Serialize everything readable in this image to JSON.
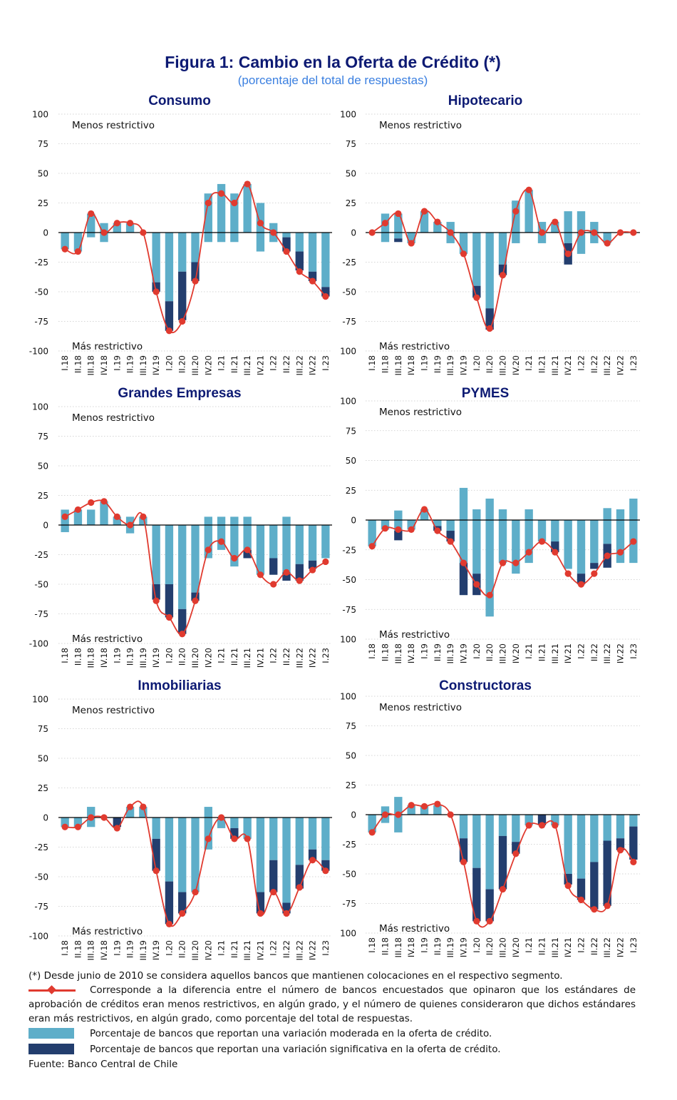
{
  "title": "Figura 1: Cambio en la Oferta de Crédito (*)",
  "subtitle": "(porcentaje del total de respuestas)",
  "colors": {
    "moderate": "#5eaec9",
    "significant": "#233e6e",
    "line": "#e03a2f",
    "title": "#0d1a73",
    "subtitle": "#3a7fe0"
  },
  "annotations": {
    "upper": "Menos restrictivo",
    "lower": "Más restrictivo"
  },
  "chart_data": [
    {
      "type": "bar",
      "title": "Consumo",
      "categories": [
        "I.18",
        "II.18",
        "III.18",
        "IV.18",
        "I.19",
        "II.19",
        "III.19",
        "IV.19",
        "I.20",
        "II.20",
        "III.20",
        "IV.20",
        "I.21",
        "II.21",
        "III.21",
        "IV.21",
        "I.22",
        "II.22",
        "III.22",
        "IV.22",
        "I.23"
      ],
      "yticks": [
        "100",
        "75",
        "50",
        "25",
        "0",
        "-25",
        "-50",
        "-75",
        "-100"
      ],
      "ylim": [
        -100,
        100
      ],
      "grid": true,
      "series": [
        {
          "name": "Variación moderada (+)",
          "kind": "bar",
          "values": [
            0,
            0,
            16,
            8,
            8,
            8,
            0,
            0,
            0,
            0,
            0,
            33,
            41,
            33,
            41,
            25,
            8,
            0,
            0,
            0,
            0
          ]
        },
        {
          "name": "Variación significativa (+)",
          "kind": "bar",
          "values": [
            0,
            0,
            0,
            0,
            0,
            0,
            0,
            0,
            0,
            0,
            0,
            0,
            0,
            0,
            0,
            0,
            0,
            0,
            0,
            0,
            0
          ]
        },
        {
          "name": "Variación moderada (-)",
          "kind": "bar",
          "values": [
            -14,
            -16,
            -4,
            -8,
            0,
            0,
            0,
            -42,
            -58,
            -33,
            -25,
            -8,
            -8,
            -8,
            0,
            -16,
            -8,
            -4,
            -16,
            -33,
            -46
          ]
        },
        {
          "name": "Variación significativa (-)",
          "kind": "bar",
          "values": [
            0,
            0,
            0,
            0,
            0,
            0,
            0,
            -8,
            -25,
            -41,
            -16,
            0,
            0,
            0,
            0,
            0,
            0,
            -12,
            -16,
            -8,
            -8
          ]
        },
        {
          "name": "Diferencia",
          "kind": "line",
          "values": [
            -14,
            -16,
            16,
            0,
            8,
            8,
            0,
            -50,
            -83,
            -75,
            -41,
            25,
            33,
            25,
            41,
            8,
            0,
            -16,
            -33,
            -41,
            -54
          ]
        }
      ]
    },
    {
      "type": "bar",
      "title": "Hipotecario",
      "categories": [
        "I.18",
        "II.18",
        "III.18",
        "IV.18",
        "I.19",
        "II.19",
        "III.19",
        "IV.19",
        "I.20",
        "II.20",
        "III.20",
        "IV.20",
        "I.21",
        "II.21",
        "III.21",
        "IV.21",
        "I.22",
        "II.22",
        "III.22",
        "IV.22",
        "I.23"
      ],
      "yticks": [
        "100",
        "75",
        "50",
        "25",
        "0",
        "-25",
        "-50",
        "-75",
        "100"
      ],
      "ylim": [
        -100,
        100
      ],
      "grid": true,
      "series": [
        {
          "name": "Variación moderada (+)",
          "kind": "bar",
          "values": [
            0,
            16,
            16,
            0,
            18,
            9,
            9,
            0,
            0,
            0,
            0,
            27,
            36,
            9,
            9,
            18,
            18,
            9,
            0,
            0,
            0
          ]
        },
        {
          "name": "Variación significativa (+)",
          "kind": "bar",
          "values": [
            0,
            0,
            0,
            0,
            0,
            0,
            0,
            0,
            0,
            0,
            0,
            0,
            0,
            0,
            0,
            0,
            0,
            0,
            0,
            0,
            0
          ]
        },
        {
          "name": "Variación moderada (-)",
          "kind": "bar",
          "values": [
            0,
            -8,
            -5,
            -9,
            0,
            0,
            -9,
            -18,
            -45,
            -64,
            -27,
            -9,
            0,
            -9,
            0,
            -9,
            -18,
            -9,
            -9,
            0,
            0
          ]
        },
        {
          "name": "Variación significativa (-)",
          "kind": "bar",
          "values": [
            0,
            0,
            -3,
            0,
            0,
            0,
            0,
            0,
            -10,
            -18,
            -9,
            0,
            0,
            0,
            0,
            -18,
            0,
            0,
            0,
            0,
            0
          ]
        },
        {
          "name": "Diferencia",
          "kind": "line",
          "values": [
            0,
            8,
            16,
            -9,
            18,
            9,
            0,
            -18,
            -55,
            -81,
            -36,
            18,
            36,
            0,
            9,
            -18,
            0,
            0,
            -9,
            0,
            0
          ]
        }
      ]
    },
    {
      "type": "bar",
      "title": "Grandes Empresas",
      "categories": [
        "I.18",
        "II.18",
        "III.18",
        "IV.18",
        "I.19",
        "II.19",
        "III.19",
        "IV.19",
        "I.20",
        "II.20",
        "III.20",
        "IV.20",
        "I.21",
        "II.21",
        "III.21",
        "IV.21",
        "I.22",
        "II.22",
        "III.22",
        "IV.22",
        "I.23"
      ],
      "yticks": [
        "100",
        "75",
        "50",
        "25",
        "0",
        "-25",
        "-50",
        "-75",
        "-100"
      ],
      "ylim": [
        -100,
        100
      ],
      "grid": true,
      "series": [
        {
          "name": "Variación moderada (+)",
          "kind": "bar",
          "values": [
            13,
            13,
            13,
            20,
            7,
            7,
            7,
            0,
            0,
            0,
            0,
            7,
            7,
            7,
            7,
            0,
            0,
            7,
            0,
            0,
            0
          ]
        },
        {
          "name": "Variación significativa (+)",
          "kind": "bar",
          "values": [
            0,
            0,
            0,
            0,
            0,
            0,
            0,
            0,
            0,
            0,
            0,
            0,
            0,
            0,
            0,
            0,
            0,
            0,
            0,
            0,
            0
          ]
        },
        {
          "name": "Variación moderada (-)",
          "kind": "bar",
          "values": [
            -6,
            0,
            0,
            0,
            0,
            -7,
            0,
            -50,
            -50,
            -71,
            -57,
            -28,
            -21,
            -35,
            -21,
            -42,
            -28,
            -40,
            -33,
            -30,
            -28
          ]
        },
        {
          "name": "Variación significativa (-)",
          "kind": "bar",
          "values": [
            0,
            0,
            0,
            0,
            0,
            0,
            0,
            -13,
            -28,
            -21,
            -7,
            0,
            0,
            0,
            -7,
            0,
            -14,
            -7,
            -14,
            -7,
            0
          ]
        },
        {
          "name": "Diferencia",
          "kind": "line",
          "values": [
            7,
            13,
            19,
            20,
            7,
            0,
            7,
            -64,
            -78,
            -92,
            -64,
            -21,
            -14,
            -28,
            -21,
            -42,
            -50,
            -40,
            -47,
            -38,
            -31
          ]
        }
      ]
    },
    {
      "type": "bar",
      "title": "PYMES",
      "categories": [
        "I.18",
        "II.18",
        "III.18",
        "IV.18",
        "I.19",
        "II.19",
        "III.19",
        "IV.19",
        "I.20",
        "II.20",
        "III.20",
        "IV.20",
        "I.21",
        "II.21",
        "III.21",
        "IV.21",
        "I.22",
        "II.22",
        "III.22",
        "IV.22",
        "I.23"
      ],
      "yticks": [
        "100",
        "75",
        "50",
        "25",
        "0",
        "-25",
        "-50",
        "-75",
        "100"
      ],
      "ylim": [
        -100,
        100
      ],
      "grid": true,
      "series": [
        {
          "name": "Variación moderada (+)",
          "kind": "bar",
          "values": [
            0,
            0,
            8,
            0,
            9,
            0,
            0,
            27,
            9,
            18,
            9,
            0,
            9,
            0,
            0,
            0,
            0,
            0,
            10,
            9,
            18
          ]
        },
        {
          "name": "Variación significativa (+)",
          "kind": "bar",
          "values": [
            0,
            0,
            0,
            0,
            0,
            0,
            0,
            0,
            0,
            0,
            0,
            0,
            0,
            0,
            0,
            0,
            0,
            0,
            0,
            0,
            0
          ]
        },
        {
          "name": "Variación moderada (-)",
          "kind": "bar",
          "values": [
            -22,
            -8,
            -9,
            -8,
            0,
            -5,
            -9,
            -36,
            -45,
            -81,
            -36,
            -45,
            -36,
            -18,
            -18,
            -41,
            -45,
            -36,
            -20,
            -36,
            -36
          ]
        },
        {
          "name": "Variación significativa (-)",
          "kind": "bar",
          "values": [
            0,
            0,
            -8,
            0,
            0,
            -4,
            -9,
            -27,
            -18,
            0,
            0,
            0,
            0,
            0,
            -9,
            0,
            -9,
            -5,
            -20,
            0,
            0
          ]
        },
        {
          "name": "Diferencia",
          "kind": "line",
          "values": [
            -22,
            -7,
            -8,
            -8,
            9,
            -9,
            -18,
            -36,
            -54,
            -63,
            -36,
            -36,
            -27,
            -18,
            -27,
            -45,
            -54,
            -45,
            -30,
            -27,
            -18
          ]
        }
      ]
    },
    {
      "type": "bar",
      "title": "Inmobiliarias",
      "categories": [
        "I.18",
        "II.18",
        "III.18",
        "IV.18",
        "I.19",
        "II.19",
        "III.19",
        "IV.19",
        "I.20",
        "II.20",
        "III.20",
        "IV.20",
        "I.21",
        "II.21",
        "III.21",
        "IV.21",
        "I.22",
        "II.22",
        "III.22",
        "IV.22",
        "I.23"
      ],
      "yticks": [
        "100",
        "75",
        "50",
        "25",
        "0",
        "-25",
        "-50",
        "-75",
        "-100"
      ],
      "ylim": [
        -100,
        100
      ],
      "grid": true,
      "series": [
        {
          "name": "Variación moderada (+)",
          "kind": "bar",
          "values": [
            0,
            0,
            9,
            0,
            0,
            9,
            9,
            0,
            0,
            0,
            0,
            9,
            0,
            0,
            0,
            0,
            0,
            0,
            0,
            0,
            0
          ]
        },
        {
          "name": "Variación significativa (+)",
          "kind": "bar",
          "values": [
            0,
            0,
            0,
            0,
            0,
            0,
            0,
            0,
            0,
            0,
            0,
            0,
            0,
            0,
            0,
            0,
            0,
            0,
            0,
            0,
            0
          ]
        },
        {
          "name": "Variación moderada (-)",
          "kind": "bar",
          "values": [
            -8,
            -8,
            -8,
            0,
            0,
            0,
            0,
            -18,
            -54,
            -63,
            -63,
            -27,
            -9,
            -9,
            -18,
            -63,
            -36,
            -72,
            -40,
            -27,
            -36
          ]
        },
        {
          "name": "Variación significativa (-)",
          "kind": "bar",
          "values": [
            0,
            0,
            0,
            0,
            -8,
            0,
            0,
            -27,
            -36,
            -18,
            0,
            0,
            0,
            -9,
            0,
            -18,
            -27,
            -9,
            -20,
            -9,
            -9
          ]
        },
        {
          "name": "Diferencia",
          "kind": "line",
          "values": [
            -8,
            -8,
            0,
            0,
            -9,
            9,
            9,
            -45,
            -90,
            -81,
            -63,
            -18,
            0,
            -18,
            -18,
            -81,
            -63,
            -81,
            -59,
            -36,
            -45
          ]
        }
      ]
    },
    {
      "type": "bar",
      "title": "Constructoras",
      "categories": [
        "I.18",
        "II.18",
        "III.18",
        "IV.18",
        "I.19",
        "II.19",
        "III.19",
        "IV.19",
        "I.20",
        "II.20",
        "III.20",
        "IV.20",
        "I.21",
        "II.21",
        "III.21",
        "IV.21",
        "I.22",
        "II.22",
        "III.22",
        "IV.22",
        "I.23"
      ],
      "yticks": [
        "100",
        "75",
        "50",
        "25",
        "0",
        "-25",
        "-50",
        "-75",
        "100"
      ],
      "ylim": [
        -100,
        100
      ],
      "grid": true,
      "series": [
        {
          "name": "Variación moderada (+)",
          "kind": "bar",
          "values": [
            0,
            7,
            15,
            8,
            8,
            8,
            0,
            0,
            0,
            0,
            0,
            0,
            0,
            0,
            0,
            0,
            0,
            0,
            0,
            0,
            0
          ]
        },
        {
          "name": "Variación significativa (+)",
          "kind": "bar",
          "values": [
            0,
            0,
            0,
            0,
            0,
            0,
            0,
            0,
            0,
            0,
            0,
            0,
            0,
            0,
            0,
            0,
            0,
            0,
            0,
            0,
            0
          ]
        },
        {
          "name": "Variación moderada (-)",
          "kind": "bar",
          "values": [
            -15,
            -7,
            -15,
            0,
            0,
            0,
            0,
            -20,
            -45,
            -63,
            -18,
            -23,
            -9,
            0,
            -9,
            -50,
            -54,
            -40,
            -22,
            -20,
            -10
          ]
        },
        {
          "name": "Variación significativa (-)",
          "kind": "bar",
          "values": [
            0,
            0,
            0,
            0,
            0,
            0,
            0,
            -20,
            -45,
            -27,
            -45,
            -10,
            0,
            -9,
            0,
            -9,
            -18,
            -40,
            -55,
            -10,
            -28
          ]
        },
        {
          "name": "Diferencia",
          "kind": "line",
          "values": [
            -15,
            0,
            0,
            8,
            7,
            9,
            0,
            -40,
            -90,
            -90,
            -63,
            -33,
            -9,
            -9,
            -9,
            -60,
            -72,
            -80,
            -77,
            -30,
            -40
          ]
        }
      ]
    }
  ],
  "notes": {
    "asterisk": "(*) Desde junio de 2010 se considera aquellos bancos que mantienen colocaciones en el respectivo segmento.",
    "line_legend": "Corresponde a la diferencia entre el número de bancos encuestados que opinaron que los estándares de aprobación de créditos eran menos restrictivos, en algún grado, y el número de quienes consideraron que dichos estándares eran más restrictivos, en algún grado, como porcentaje del total de respuestas.",
    "moderate_legend": "Porcentaje de bancos que reportan una variación moderada en la oferta de crédito.",
    "significant_legend": "Porcentaje de bancos que reportan una variación significativa en la oferta de crédito.",
    "source": "Fuente: Banco Central de Chile"
  }
}
